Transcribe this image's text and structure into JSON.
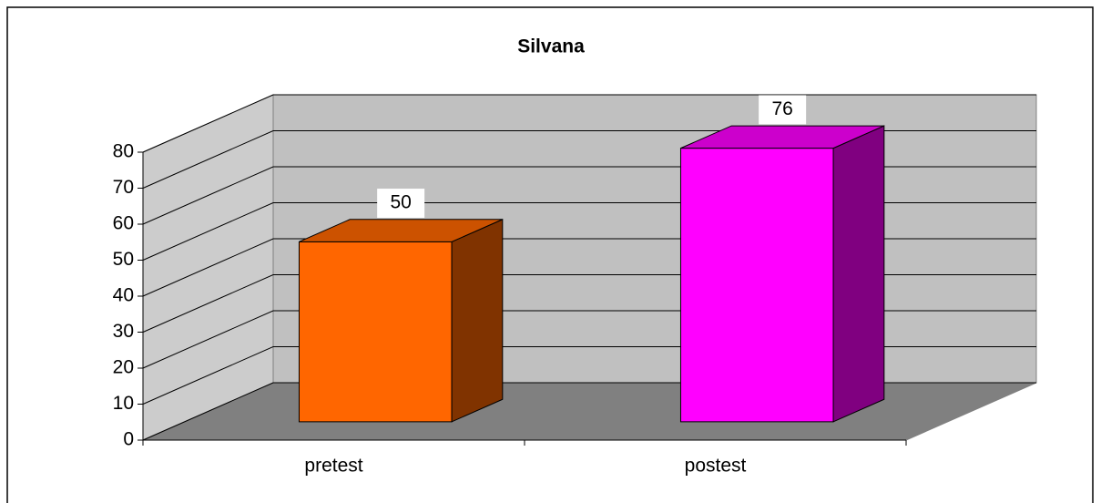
{
  "chart_data": {
    "type": "bar3d",
    "title": "Silvana",
    "categories": [
      "pretest",
      "postest"
    ],
    "values": [
      50,
      76
    ],
    "colors": [
      "#ff6600",
      "#ff00ff"
    ],
    "ylim": [
      0,
      80
    ],
    "yticks": [
      0,
      10,
      20,
      30,
      40,
      50,
      60,
      70,
      80
    ],
    "grid": true
  }
}
